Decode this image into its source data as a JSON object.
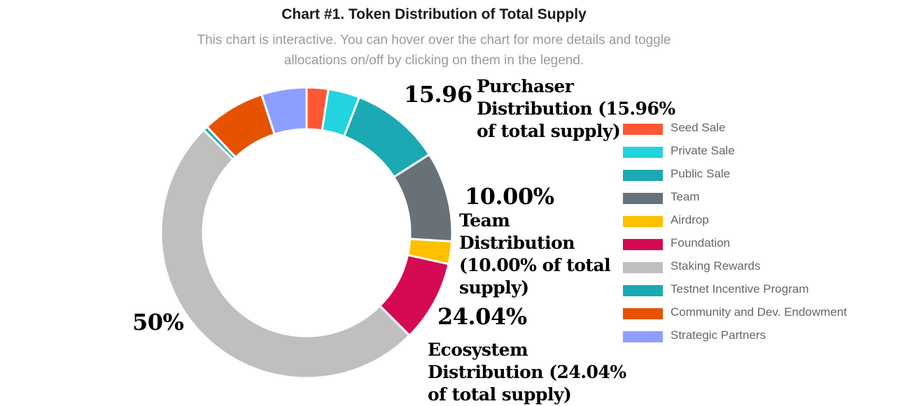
{
  "chart_data": {
    "type": "pie",
    "variant": "donut",
    "title": "Chart #1. Token Distribution of Total Supply",
    "subtitle": "This chart is interactive. You can hover over the chart for more details and toggle allocations on/off by clicking on them in the legend.",
    "categories": [
      "Seed Sale",
      "Private Sale",
      "Public Sale",
      "Team",
      "Airdrop",
      "Foundation",
      "Staking Rewards",
      "Testnet Incentive Program",
      "Community and Dev. Endowment",
      "Strategic Partners"
    ],
    "values": [
      2.4,
      3.5,
      10.06,
      10.0,
      2.5,
      9.04,
      50.0,
      0.5,
      7.0,
      5.0
    ],
    "colors": [
      "#ff5733",
      "#22d3e0",
      "#1ba9b4",
      "#687178",
      "#ffc000",
      "#d60a52",
      "#bfbfbf",
      "#1ba9b4",
      "#e55300",
      "#8c9eff"
    ],
    "legend_position": "right",
    "annotations": {
      "purchaser": {
        "value": "15.96",
        "label": "Purchaser Distribution (15.96% of total supply)"
      },
      "team": {
        "value": "10.00%",
        "label": "Team Distribution (10.00% of total supply)"
      },
      "ecosystem": {
        "value": "24.04%",
        "label": "Ecosystem Distribution (24.04% of total supply)"
      },
      "staking": {
        "value": "50%"
      }
    }
  }
}
